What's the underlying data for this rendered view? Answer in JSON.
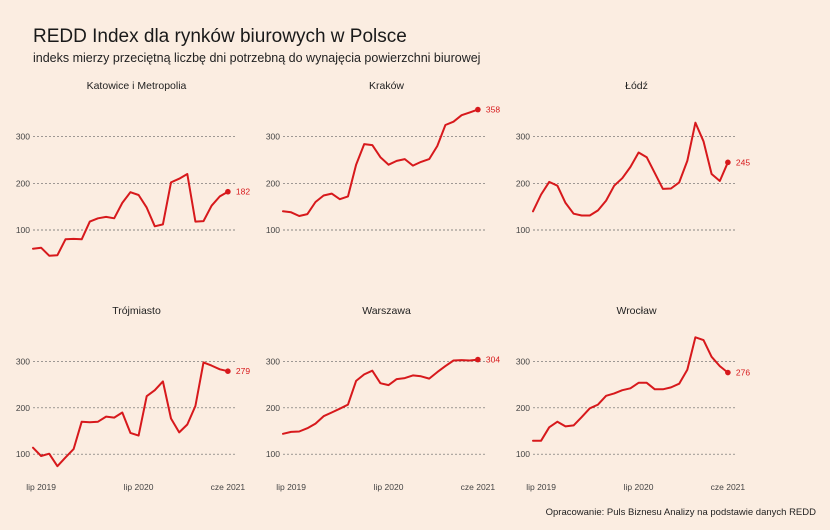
{
  "title": "REDD Index dla rynków biurowych w Polsce",
  "subtitle": "indeks mierzy przeciętną liczbę dni potrzebną do wynajęcia powierzchni biurowej",
  "caption": "Opracowanie: Puls Biznesu Analizy na podstawie danych REDD",
  "colors": {
    "background": "#fbede1",
    "series": "#d7191c"
  },
  "chart_data": {
    "type": "line",
    "ylim": [
      40,
      370
    ],
    "yticks": [
      100,
      200,
      300
    ],
    "x_range": [
      "2019-06",
      "2021-07"
    ],
    "xticks": [
      {
        "label": "lip 2019",
        "value": "2019-07"
      },
      {
        "label": "lip 2020",
        "value": "2020-07"
      },
      {
        "label": "cze 2021",
        "value": "2021-06"
      }
    ],
    "x": [
      "2019-06",
      "2019-07",
      "2019-08",
      "2019-09",
      "2019-10",
      "2019-11",
      "2019-12",
      "2020-01",
      "2020-02",
      "2020-03",
      "2020-04",
      "2020-05",
      "2020-06",
      "2020-07",
      "2020-08",
      "2020-09",
      "2020-10",
      "2020-11",
      "2020-12",
      "2021-01",
      "2021-02",
      "2021-03",
      "2021-04",
      "2021-05",
      "2021-06"
    ],
    "panels": [
      {
        "name": "Katowice i Metropolia",
        "end_label": "182",
        "values": [
          60,
          62,
          45,
          46,
          80,
          81,
          80,
          118,
          125,
          128,
          125,
          158,
          181,
          175,
          148,
          108,
          112,
          202,
          210,
          220,
          118,
          119,
          152,
          172,
          182
        ]
      },
      {
        "name": "Kraków",
        "end_label": "358",
        "values": [
          140,
          138,
          130,
          134,
          160,
          174,
          178,
          166,
          172,
          240,
          284,
          282,
          256,
          240,
          248,
          252,
          238,
          246,
          252,
          280,
          325,
          332,
          346,
          352,
          358
        ]
      },
      {
        "name": "Łódź",
        "end_label": "245",
        "values": [
          140,
          176,
          203,
          195,
          158,
          135,
          131,
          131,
          142,
          163,
          195,
          211,
          235,
          266,
          256,
          222,
          188,
          189,
          202,
          248,
          330,
          290,
          220,
          205,
          245
        ]
      },
      {
        "name": "Trójmiasto",
        "end_label": "279",
        "values": [
          114,
          96,
          101,
          74,
          93,
          111,
          170,
          169,
          170,
          181,
          179,
          190,
          146,
          140,
          225,
          238,
          257,
          177,
          147,
          164,
          204,
          298,
          291,
          283,
          279
        ]
      },
      {
        "name": "Warszawa",
        "end_label": "304",
        "values": [
          144,
          148,
          149,
          156,
          166,
          182,
          190,
          198,
          207,
          258,
          272,
          280,
          253,
          249,
          262,
          264,
          270,
          268,
          263,
          277,
          290,
          302,
          303,
          302,
          304
        ]
      },
      {
        "name": "Wrocław",
        "end_label": "276",
        "values": [
          129,
          129,
          158,
          170,
          160,
          162,
          180,
          199,
          207,
          226,
          231,
          238,
          242,
          254,
          254,
          240,
          240,
          244,
          252,
          282,
          352,
          346,
          310,
          290,
          276
        ]
      }
    ]
  }
}
